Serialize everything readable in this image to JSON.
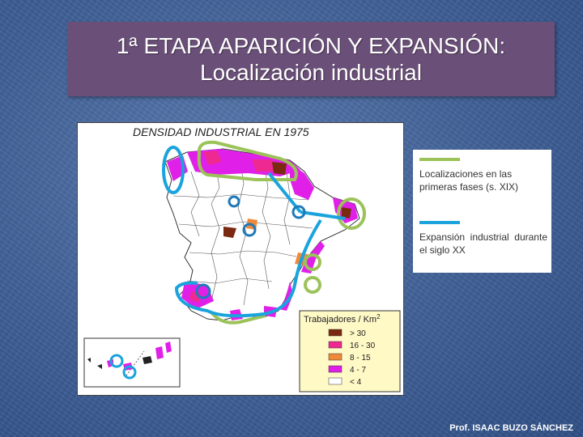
{
  "title": {
    "line1": "1ª ETAPA APARICIÓN Y EXPANSIÓN:",
    "line2": "Localización industrial"
  },
  "map": {
    "heading": "DENSIDAD INDUSTRIAL EN 1975",
    "legend_title": "Trabajadores / Km",
    "legend_title_sup": "2",
    "classes": [
      {
        "label": "> 30",
        "color": "#7a2a10"
      },
      {
        "label": "16 - 30",
        "color": "#ee2a92"
      },
      {
        "label": "8 - 15",
        "color": "#f08a3a"
      },
      {
        "label": "4 - 7",
        "color": "#e020e8"
      },
      {
        "label": "< 4",
        "color": "#ffffff"
      }
    ]
  },
  "key": {
    "early": {
      "text": "Localizaciones en las primeras fases (s. XIX)",
      "color": "#9cc25a"
    },
    "expansion": {
      "text": "Expansión industrial durante el siglo XX",
      "color": "#1aa3dc"
    }
  },
  "footer": "Prof. ISAAC BUZO SÁNCHEZ"
}
